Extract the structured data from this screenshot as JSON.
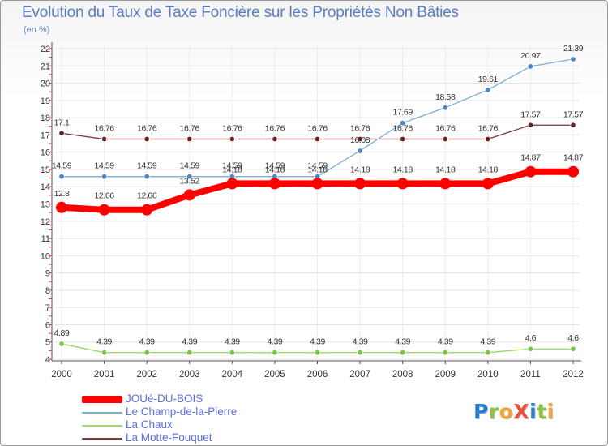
{
  "title": "Evolution du Taux de Taxe Foncière sur les Propriétés Non Bâties",
  "unit": "(en %)",
  "logo": {
    "text": "Proxiti",
    "letters": [
      {
        "ch": "P",
        "color": "#2b7fd0"
      },
      {
        "ch": "r",
        "color": "#8bc43f"
      },
      {
        "ch": "o",
        "color": "#f1a33a"
      },
      {
        "ch": "X",
        "color": "#e8523a"
      },
      {
        "ch": "i",
        "color": "#2b7fd0"
      },
      {
        "ch": "t",
        "color": "#8bc43f"
      },
      {
        "ch": "i",
        "color": "#f1a33a"
      }
    ]
  },
  "chart_data": {
    "type": "line",
    "title": "Evolution du Taux de Taxe Foncière sur les Propriétés Non Bâties",
    "ylabel": "(en %)",
    "xlabel": "",
    "x": [
      "2000",
      "2001",
      "2002",
      "2003",
      "2004",
      "2005",
      "2006",
      "2007",
      "2008",
      "2009",
      "2010",
      "2011",
      "2012"
    ],
    "ylim": [
      4,
      22
    ],
    "yticks": [
      4,
      5,
      6,
      7,
      8,
      9,
      10,
      11,
      12,
      13,
      14,
      15,
      16,
      17,
      18,
      19,
      20,
      21,
      22
    ],
    "grid": true,
    "legend_position": "bottom-left",
    "series": [
      {
        "name": "JOUé-DU-BOIS",
        "color": "#ff0000",
        "values": [
          12.8,
          12.66,
          12.66,
          13.52,
          14.18,
          14.18,
          14.18,
          14.18,
          14.18,
          14.18,
          14.18,
          14.87,
          14.87
        ],
        "labels": [
          "12.8",
          "12.66",
          "12.66",
          "13.52",
          "14.18",
          "14.18",
          "14.18",
          "14.18",
          "14.18",
          "14.18",
          "14.18",
          "14.87",
          "14.87"
        ]
      },
      {
        "name": "Le Champ-de-la-Pierre",
        "color": "#7eaed8",
        "values": [
          14.59,
          14.59,
          14.59,
          14.59,
          14.59,
          14.59,
          14.59,
          16.08,
          17.69,
          18.58,
          19.61,
          20.97,
          21.39
        ],
        "labels": [
          "14.59",
          "14.59",
          "14.59",
          "14.59",
          "14.59",
          "14.59",
          "14.59",
          "16.08",
          "17.69",
          "18.58",
          "19.61",
          "20.97",
          "21.39"
        ]
      },
      {
        "name": "La Chaux",
        "color": "#9ad96a",
        "values": [
          4.89,
          4.39,
          4.39,
          4.39,
          4.39,
          4.39,
          4.39,
          4.39,
          4.39,
          4.39,
          4.39,
          4.6,
          4.6
        ],
        "labels": [
          "4.89",
          "4.39",
          "4.39",
          "4.39",
          "4.39",
          "4.39",
          "4.39",
          "4.39",
          "4.39",
          "4.39",
          "4.39",
          "4.6",
          "4.6"
        ]
      },
      {
        "name": "La Motte-Fouquet",
        "color": "#7a3b3b",
        "values": [
          17.1,
          16.76,
          16.76,
          16.76,
          16.76,
          16.76,
          16.76,
          16.76,
          16.76,
          16.76,
          16.76,
          17.57,
          17.57
        ],
        "labels": [
          "17.1",
          "16.76",
          "16.76",
          "16.76",
          "16.76",
          "16.76",
          "16.76",
          "16.76",
          "16.76",
          "16.76",
          "16.76",
          "17.57",
          "17.57"
        ]
      }
    ]
  }
}
